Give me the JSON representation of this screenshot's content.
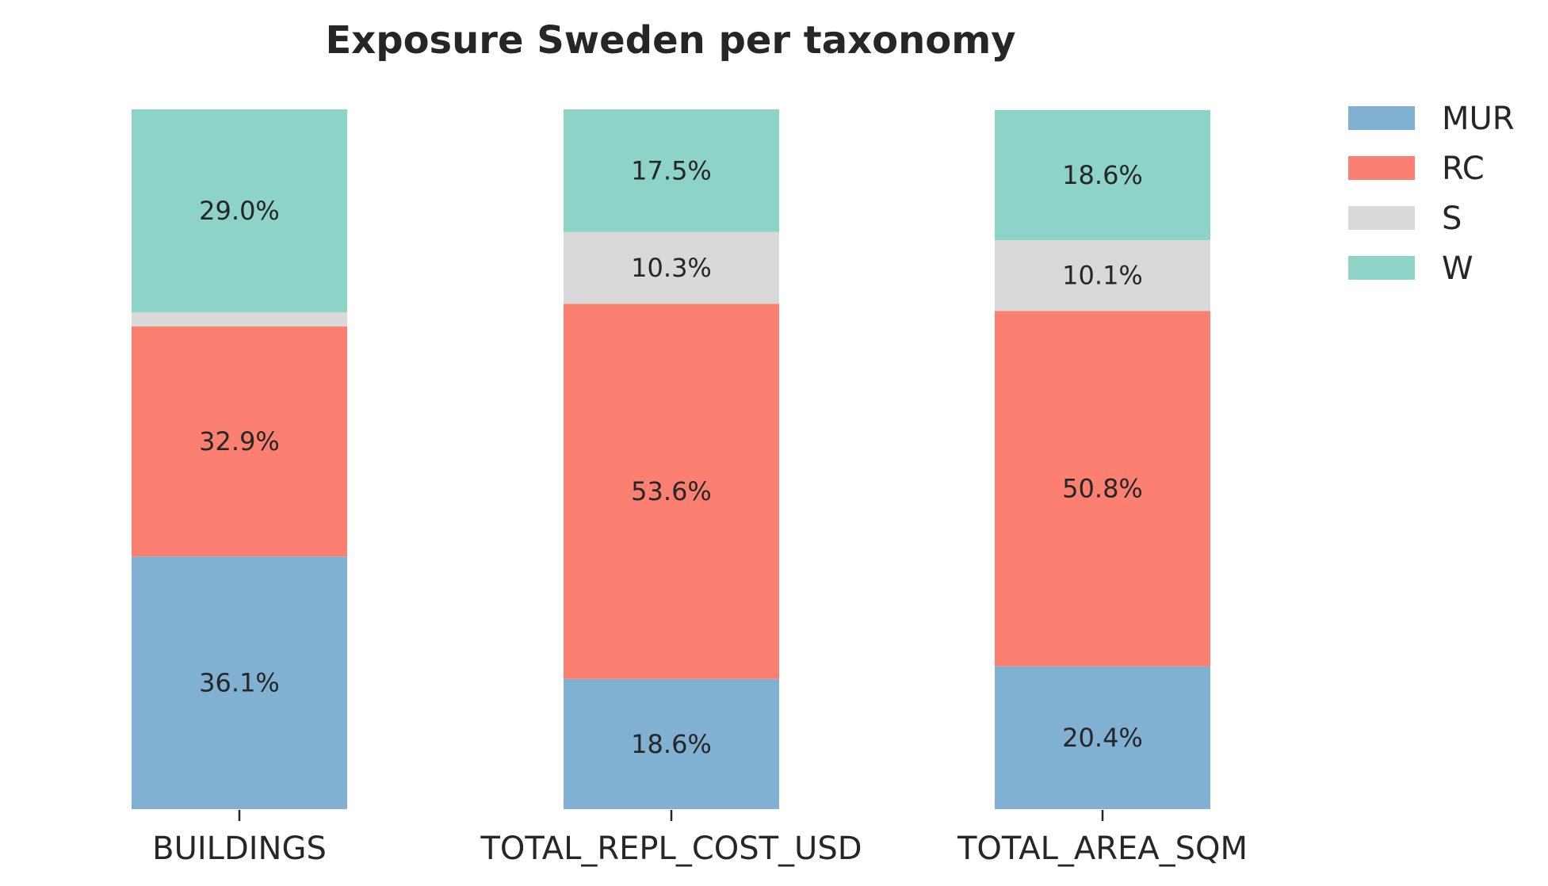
{
  "chart_data": {
    "type": "bar",
    "stacked": true,
    "normalized": true,
    "title": "Exposure Sweden per taxonomy",
    "xlabel": "",
    "ylabel": "",
    "ylim": [
      0,
      100
    ],
    "grid": false,
    "legend_position": "top-right",
    "categories": [
      "BUILDINGS",
      "TOTAL_REPL_COST_USD",
      "TOTAL_AREA_SQM"
    ],
    "series": [
      {
        "name": "MUR",
        "color": "#80b1d3",
        "values": [
          36.1,
          18.6,
          20.4
        ],
        "labels": [
          "36.1%",
          "18.6%",
          "20.4%"
        ]
      },
      {
        "name": "RC",
        "color": "#fb8072",
        "values": [
          32.9,
          53.6,
          50.8
        ],
        "labels": [
          "32.9%",
          "53.6%",
          "50.8%"
        ]
      },
      {
        "name": "S",
        "color": "#d9d9d9",
        "values": [
          2.0,
          10.3,
          10.1
        ],
        "labels": [
          "",
          "10.3%",
          "10.1%"
        ]
      },
      {
        "name": "W",
        "color": "#8dd3c7",
        "values": [
          29.0,
          17.5,
          18.6
        ],
        "labels": [
          "29.0%",
          "17.5%",
          "18.6%"
        ]
      }
    ]
  }
}
